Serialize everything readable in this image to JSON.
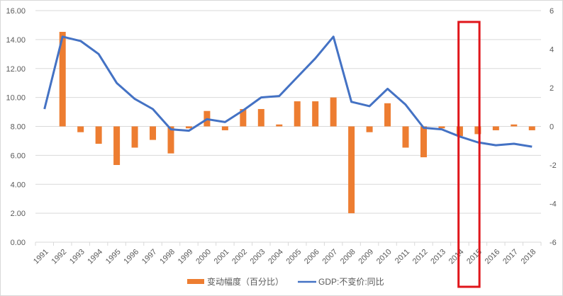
{
  "chart_data": {
    "type": "bar+line",
    "title": "",
    "categories": [
      "1991",
      "1992",
      "1993",
      "1994",
      "1995",
      "1996",
      "1997",
      "1998",
      "1999",
      "2000",
      "2001",
      "2002",
      "2003",
      "2004",
      "2005",
      "2006",
      "2007",
      "2008",
      "2009",
      "2010",
      "2011",
      "2012",
      "2013",
      "2014",
      "2015",
      "2016",
      "2017",
      "2018"
    ],
    "series": [
      {
        "name": "变动幅度（百分比）",
        "type": "bar",
        "axis": "right",
        "color": "#ED7D31",
        "values": [
          null,
          4.9,
          -0.3,
          -0.9,
          -2.0,
          -1.1,
          -0.7,
          -1.4,
          -0.1,
          0.8,
          -0.2,
          0.9,
          0.9,
          0.1,
          1.3,
          1.3,
          1.5,
          -4.5,
          -0.3,
          1.2,
          -1.1,
          -1.6,
          -0.1,
          -0.5,
          -0.4,
          -0.2,
          0.1,
          -0.2
        ]
      },
      {
        "name": "GDP:不变价:同比",
        "type": "line",
        "axis": "left",
        "color": "#4472C4",
        "values": [
          9.2,
          14.2,
          13.9,
          13.0,
          11.0,
          9.9,
          9.2,
          7.8,
          7.7,
          8.5,
          8.3,
          9.1,
          10.0,
          10.1,
          11.4,
          12.7,
          14.2,
          9.7,
          9.4,
          10.6,
          9.5,
          7.9,
          7.8,
          7.3,
          6.9,
          6.7,
          6.8,
          6.6
        ]
      }
    ],
    "left_axis": {
      "ylim": [
        0,
        16
      ],
      "ticks": [
        "0.00",
        "2.00",
        "4.00",
        "6.00",
        "8.00",
        "10.00",
        "12.00",
        "14.00",
        "16.00"
      ]
    },
    "right_axis": {
      "ylim": [
        -6,
        6
      ],
      "ticks": [
        "-6",
        "-4",
        "-2",
        "0",
        "2",
        "4",
        "6"
      ]
    },
    "xlabel": "",
    "ylabel": "",
    "grid": true,
    "legend_position": "bottom",
    "annotation": {
      "type": "red-rectangle",
      "highlight": [
        "2014",
        "2015"
      ],
      "color": "#E0161B"
    }
  },
  "legend": {
    "bar_label": "变动幅度（百分比）",
    "line_label": "GDP:不变价:同比"
  }
}
